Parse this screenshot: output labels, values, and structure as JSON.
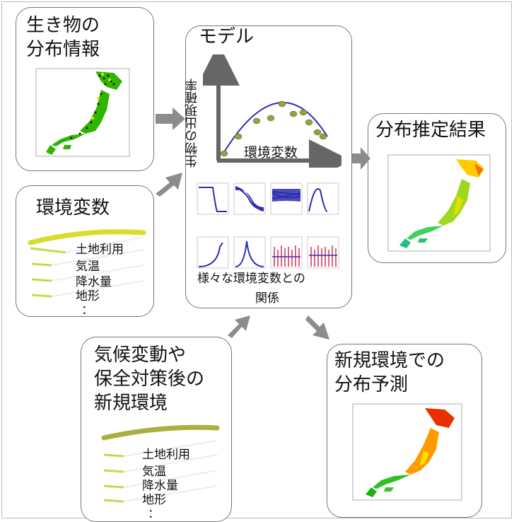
{
  "boxes": {
    "occurrence": {
      "title_line1": "生き物の",
      "title_line2": "分布情報"
    },
    "env": {
      "title": "環境変数",
      "items": [
        "土地利用",
        "気温",
        "降水量",
        "地形",
        "："
      ]
    },
    "model": {
      "title": "モデル",
      "ylabel": "生物の出現確率",
      "xlabel": "環境変数",
      "caption_line1": "様々な環境変数との",
      "caption_line2": "関係"
    },
    "result": {
      "title": "分布推定結果"
    },
    "future_env": {
      "title_line1": "気候変動や",
      "title_line2": "保全対策後の",
      "title_line3": "新規環境",
      "items": [
        "土地利用",
        "気温",
        "降水量",
        "地形",
        "："
      ]
    },
    "prediction": {
      "title_line1": "新規環境での",
      "title_line2": "分布予測"
    }
  },
  "colors": {
    "arrow": "#8c8c8c",
    "curve": "#2d2db0",
    "point": "#8fa63a",
    "green": "#2fb400",
    "yellow": "#e6e600",
    "red": "#e83000"
  }
}
